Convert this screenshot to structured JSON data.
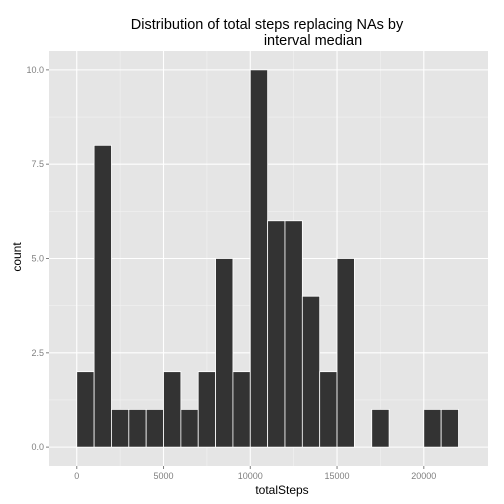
{
  "chart_data": {
    "type": "bar",
    "title_lines": [
      "Distribution of total steps replacing NAs by",
      "interval median"
    ],
    "xlabel": "totalSteps",
    "ylabel": "count",
    "xlim": [
      -1600,
      23700
    ],
    "ylim": [
      -0.5,
      10.5
    ],
    "x_ticks": [
      0,
      5000,
      10000,
      15000,
      20000
    ],
    "x_tick_labels": [
      "0",
      "5000",
      "10000",
      "15000",
      "20000"
    ],
    "y_ticks": [
      0,
      2.5,
      5,
      7.5,
      10
    ],
    "y_tick_labels": [
      "0.0",
      "2.5",
      "5.0",
      "7.5",
      "10.0"
    ],
    "grid": true,
    "bin_width": 1000,
    "bins": [
      {
        "x0": 0,
        "x1": 1000,
        "count": 2
      },
      {
        "x0": 1000,
        "x1": 2000,
        "count": 8
      },
      {
        "x0": 2000,
        "x1": 3000,
        "count": 1
      },
      {
        "x0": 3000,
        "x1": 4000,
        "count": 1
      },
      {
        "x0": 4000,
        "x1": 5000,
        "count": 1
      },
      {
        "x0": 5000,
        "x1": 6000,
        "count": 2
      },
      {
        "x0": 6000,
        "x1": 7000,
        "count": 1
      },
      {
        "x0": 7000,
        "x1": 8000,
        "count": 2
      },
      {
        "x0": 8000,
        "x1": 9000,
        "count": 5
      },
      {
        "x0": 9000,
        "x1": 10000,
        "count": 2
      },
      {
        "x0": 10000,
        "x1": 11000,
        "count": 10
      },
      {
        "x0": 11000,
        "x1": 12000,
        "count": 6
      },
      {
        "x0": 12000,
        "x1": 13000,
        "count": 6
      },
      {
        "x0": 13000,
        "x1": 14000,
        "count": 4
      },
      {
        "x0": 14000,
        "x1": 15000,
        "count": 2
      },
      {
        "x0": 15000,
        "x1": 16000,
        "count": 5
      },
      {
        "x0": 16000,
        "x1": 17000,
        "count": 0
      },
      {
        "x0": 17000,
        "x1": 18000,
        "count": 1
      },
      {
        "x0": 18000,
        "x1": 19000,
        "count": 0
      },
      {
        "x0": 19000,
        "x1": 20000,
        "count": 0
      },
      {
        "x0": 20000,
        "x1": 21000,
        "count": 1
      },
      {
        "x0": 21000,
        "x1": 22000,
        "count": 1
      }
    ],
    "colors": {
      "panel_background": "#e5e5e5",
      "grid_major": "#ffffff",
      "grid_minor": "#f2f2f2",
      "bar_fill": "#333333",
      "bar_outline": "#ffffff"
    }
  }
}
